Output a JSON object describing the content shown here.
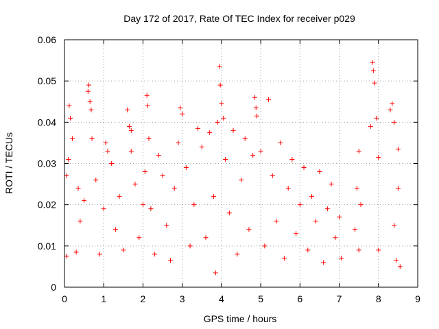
{
  "chart_data": {
    "type": "scatter",
    "title": "Day 172 of 2017, Rate Of TEC Index for receiver p029",
    "xlabel": "GPS time / hours",
    "ylabel": "ROTI / TECUs",
    "xlim": [
      0,
      9
    ],
    "ylim": [
      0,
      0.06
    ],
    "x_ticks": [
      0,
      1,
      2,
      3,
      4,
      5,
      6,
      7,
      8,
      9
    ],
    "y_ticks": [
      0,
      0.01,
      0.02,
      0.03,
      0.04,
      0.05,
      0.06
    ],
    "grid": true,
    "marker": "plus",
    "color": "#ff0000",
    "series": [
      {
        "values": [
          [
            0.05,
            0.0075
          ],
          [
            0.05,
            0.027
          ],
          [
            0.1,
            0.031
          ],
          [
            0.12,
            0.044
          ],
          [
            0.15,
            0.041
          ],
          [
            0.2,
            0.036
          ],
          [
            0.3,
            0.0085
          ],
          [
            0.35,
            0.024
          ],
          [
            0.4,
            0.016
          ],
          [
            0.5,
            0.021
          ],
          [
            0.6,
            0.0475
          ],
          [
            0.62,
            0.049
          ],
          [
            0.65,
            0.045
          ],
          [
            0.68,
            0.043
          ],
          [
            0.7,
            0.036
          ],
          [
            0.8,
            0.026
          ],
          [
            0.9,
            0.008
          ],
          [
            1.0,
            0.019
          ],
          [
            1.05,
            0.035
          ],
          [
            1.1,
            0.033
          ],
          [
            1.2,
            0.03
          ],
          [
            1.3,
            0.014
          ],
          [
            1.4,
            0.022
          ],
          [
            1.5,
            0.009
          ],
          [
            1.6,
            0.043
          ],
          [
            1.65,
            0.039
          ],
          [
            1.7,
            0.038
          ],
          [
            1.7,
            0.033
          ],
          [
            1.8,
            0.025
          ],
          [
            1.9,
            0.012
          ],
          [
            2.0,
            0.02
          ],
          [
            2.05,
            0.028
          ],
          [
            2.1,
            0.0465
          ],
          [
            2.12,
            0.044
          ],
          [
            2.15,
            0.036
          ],
          [
            2.2,
            0.019
          ],
          [
            2.3,
            0.008
          ],
          [
            2.4,
            0.032
          ],
          [
            2.5,
            0.027
          ],
          [
            2.6,
            0.015
          ],
          [
            2.7,
            0.0065
          ],
          [
            2.8,
            0.024
          ],
          [
            2.9,
            0.035
          ],
          [
            2.95,
            0.0435
          ],
          [
            3.0,
            0.042
          ],
          [
            3.1,
            0.029
          ],
          [
            3.2,
            0.01
          ],
          [
            3.3,
            0.02
          ],
          [
            3.4,
            0.0385
          ],
          [
            3.5,
            0.034
          ],
          [
            3.6,
            0.012
          ],
          [
            3.7,
            0.0375
          ],
          [
            3.8,
            0.022
          ],
          [
            3.85,
            0.0035
          ],
          [
            3.9,
            0.04
          ],
          [
            3.95,
            0.0535
          ],
          [
            3.97,
            0.049
          ],
          [
            4.0,
            0.0445
          ],
          [
            4.05,
            0.041
          ],
          [
            4.1,
            0.031
          ],
          [
            4.2,
            0.018
          ],
          [
            4.3,
            0.038
          ],
          [
            4.4,
            0.008
          ],
          [
            4.5,
            0.026
          ],
          [
            4.6,
            0.036
          ],
          [
            4.7,
            0.014
          ],
          [
            4.8,
            0.032
          ],
          [
            4.85,
            0.046
          ],
          [
            4.88,
            0.0435
          ],
          [
            4.9,
            0.0415
          ],
          [
            5.0,
            0.033
          ],
          [
            5.1,
            0.01
          ],
          [
            5.2,
            0.0455
          ],
          [
            5.3,
            0.027
          ],
          [
            5.4,
            0.016
          ],
          [
            5.5,
            0.035
          ],
          [
            5.6,
            0.007
          ],
          [
            5.7,
            0.024
          ],
          [
            5.8,
            0.031
          ],
          [
            5.9,
            0.013
          ],
          [
            6.0,
            0.02
          ],
          [
            6.1,
            0.029
          ],
          [
            6.2,
            0.009
          ],
          [
            6.3,
            0.022
          ],
          [
            6.4,
            0.016
          ],
          [
            6.5,
            0.028
          ],
          [
            6.6,
            0.006
          ],
          [
            6.7,
            0.019
          ],
          [
            6.8,
            0.025
          ],
          [
            6.9,
            0.012
          ],
          [
            7.0,
            0.017
          ],
          [
            7.05,
            0.007
          ],
          [
            7.4,
            0.014
          ],
          [
            7.45,
            0.024
          ],
          [
            7.5,
            0.009
          ],
          [
            7.5,
            0.033
          ],
          [
            7.55,
            0.02
          ],
          [
            7.8,
            0.039
          ],
          [
            7.85,
            0.0545
          ],
          [
            7.87,
            0.0525
          ],
          [
            7.9,
            0.0495
          ],
          [
            7.95,
            0.041
          ],
          [
            8.0,
            0.0315
          ],
          [
            8.0,
            0.009
          ],
          [
            8.3,
            0.043
          ],
          [
            8.35,
            0.0445
          ],
          [
            8.4,
            0.04
          ],
          [
            8.4,
            0.015
          ],
          [
            8.45,
            0.0065
          ],
          [
            8.5,
            0.024
          ],
          [
            8.5,
            0.0335
          ],
          [
            8.55,
            0.005
          ]
        ]
      }
    ]
  }
}
